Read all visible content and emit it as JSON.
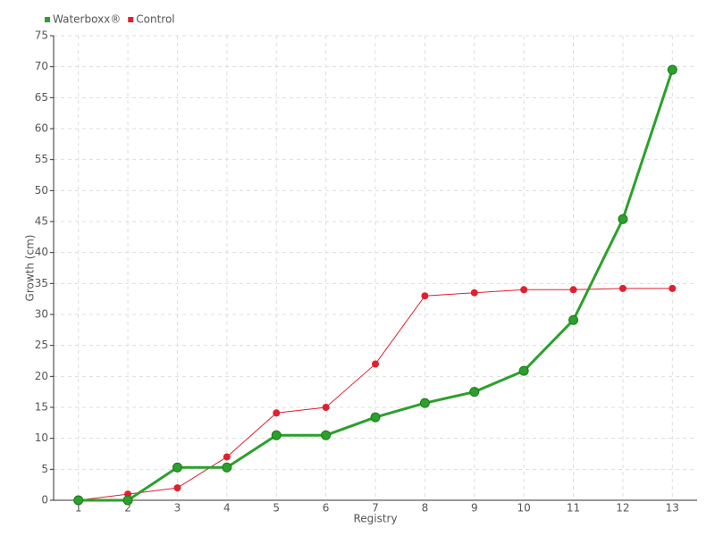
{
  "chart_data": {
    "type": "line",
    "x_label": "Registry",
    "y_label": "Growth (cm)",
    "categories": [
      "1",
      "2",
      "3",
      "4",
      "5",
      "6",
      "7",
      "8",
      "9",
      "10",
      "11",
      "12",
      "13"
    ],
    "series": [
      {
        "name": "Waterboxx®",
        "color": "#2ca02c",
        "values": [
          0,
          0,
          5.3,
          5.3,
          10.5,
          10.5,
          13.4,
          15.7,
          17.5,
          20.9,
          29.1,
          45.4,
          69.5
        ]
      },
      {
        "name": "Control",
        "color": "#e0202e",
        "values": [
          0,
          1,
          2,
          7,
          14.1,
          15,
          22,
          33,
          33.5,
          34,
          34,
          34.2,
          34.2
        ]
      }
    ],
    "ylim": [
      0,
      75
    ],
    "yticks": [
      0,
      5,
      10,
      15,
      20,
      25,
      30,
      35,
      40,
      45,
      50,
      55,
      60,
      65,
      70,
      75
    ],
    "grid": true,
    "legend": "top-left"
  }
}
